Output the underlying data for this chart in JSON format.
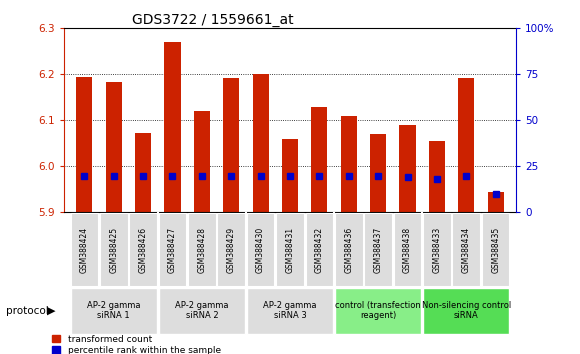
{
  "title": "GDS3722 / 1559661_at",
  "samples": [
    "GSM388424",
    "GSM388425",
    "GSM388426",
    "GSM388427",
    "GSM388428",
    "GSM388429",
    "GSM388430",
    "GSM388431",
    "GSM388432",
    "GSM388436",
    "GSM388437",
    "GSM388438",
    "GSM388433",
    "GSM388434",
    "GSM388435"
  ],
  "transformed_counts": [
    6.195,
    6.183,
    6.072,
    6.27,
    6.12,
    6.193,
    6.2,
    6.06,
    6.13,
    6.11,
    6.07,
    6.09,
    6.055,
    6.193,
    5.945
  ],
  "percentile_ranks": [
    20,
    20,
    20,
    20,
    20,
    20,
    20,
    20,
    20,
    20,
    20,
    19,
    18,
    20,
    10
  ],
  "ylim_left": [
    5.9,
    6.3
  ],
  "ylim_right": [
    0,
    100
  ],
  "yticks_left": [
    5.9,
    6.0,
    6.1,
    6.2,
    6.3
  ],
  "yticks_right": [
    0,
    25,
    50,
    75,
    100
  ],
  "ytick_labels_right": [
    "0",
    "25",
    "50",
    "75",
    "100%"
  ],
  "groups": [
    {
      "label": "AP-2 gamma\nsiRNA 1",
      "indices": [
        0,
        1,
        2
      ],
      "color": "#dddddd"
    },
    {
      "label": "AP-2 gamma\nsiRNA 2",
      "indices": [
        3,
        4,
        5
      ],
      "color": "#dddddd"
    },
    {
      "label": "AP-2 gamma\nsiRNA 3",
      "indices": [
        6,
        7,
        8
      ],
      "color": "#dddddd"
    },
    {
      "label": "control (transfection\nreagent)",
      "indices": [
        9,
        10,
        11
      ],
      "color": "#88ee88"
    },
    {
      "label": "Non-silencing control\nsiRNA",
      "indices": [
        12,
        13,
        14
      ],
      "color": "#55dd55"
    }
  ],
  "bar_color": "#cc2200",
  "blue_color": "#0000cc",
  "bar_width": 0.55,
  "protocol_label": "protocol",
  "legend_transformed": "transformed count",
  "legend_percentile": "percentile rank within the sample",
  "left_tick_color": "#cc2200",
  "right_tick_color": "#0000cc",
  "grid_color": "#000000",
  "background_color": "#ffffff",
  "plot_bg_color": "#ffffff"
}
